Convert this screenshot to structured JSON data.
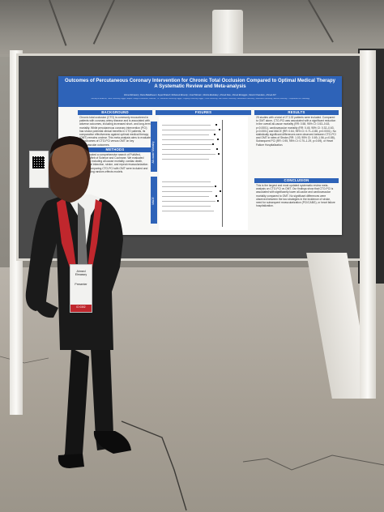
{
  "poster": {
    "title": "Outcomes of Percutaneous Coronary Intervention for Chronic Total Occlusion Compared to Optimal Medical Therapy",
    "subtitle": "A Systematic Review and Meta-analysis",
    "authors": "Ahmed Elmassry¹, Reina Balakhseen², Zeyad Khaled³, Mohamed Elmerdy⁴, Imad Tahmaz⁵, Moniza Elsokkary⁶, Ahmed Daw⁷, Ahmed Elmaggar⁸, Mounir Chaoulam⁹, Ahmed Ali¹⁰",
    "affiliations": "¹Faculty of Medicine, Tanta University, Egypt; ²Baylor College of Medicine, Houston, TX; ³Menoufia University, Egypt; ⁴Zagazig University, Egypt; ⁵Cairo University; ⁶Ain Shams University; ⁷Alexandria University; ⁸Mansoura University; ⁹Assiut University; ¹⁰Department of Cardiology",
    "sections": {
      "background": "BACKGROUND",
      "methods": "METHODS",
      "figures": "FIGURES",
      "results": "RESULTS",
      "conclusion": "CONCLUSION"
    },
    "background_text": "Chronic total occlusion (CTO) is commonly encountered in patients with coronary artery disease and is associated with adverse outcomes, including increased short- and long-term mortality. While percutaneous coronary intervention (PCI) has shown potential clinical benefits in CTO patients, its comparative effectiveness against optimal medical therapy (OMT) remains unclear. This meta-analysis aims to evaluate the outcomes of CTO-PCI versus OMT on key cardiovascular outcomes.",
    "methods_text": "We conducted a comprehensive search of PubMed, Scopus, Web of Science and Cochrane. We evaluated outcomes including all-cause mortality, cardiac death, myocardial infarction, stroke, and repeat revascularization. Studies comparing CTO-PCI with OMT were included and pooled using random-effects models.",
    "side_tabs": [
      "All-cause Mortality",
      "MACE"
    ],
    "results_text": "25 studies with a total of 27,132 patients were included. Compared to OMT alone, CTO-PCI was associated with a significant reduction in the overall all-cause mortality (RR: 0.58, 95% CI: 0.53–0.63, p<0.0001), cardiovascular mortality (RR: 0.45, 95% CI: 0.32–0.63, p<0.0001) and MACE (RR: 0.64, 95% CI: 0.71–0.88, p<0.0001). No statistically significant differences were observed between CTO-PCI and OMT in rates of Stroke (RR: 1.03, 95% CI: 0.69–1.56, p=0.88), Subsequent PCI (RR: 0.95, 95% CI: 0.70–1.29, p=0.59), or Heart Failure Hospitalization.",
    "conclusion_text": "This is the largest and most updated systematic review meta-analysis on CTO-PCI vs OMT. Our findings show that CTO-PCI is associated with significantly lower all-cause and cardiovascular mortality compared to OMT. No significant differences were observed between the two strategies in the incidence of stroke, need for subsequent revascularization (PCI/CABG), or heart failure hospitalization."
  },
  "badge": {
    "name": "Ahmed Elmassry",
    "role": "Presenter",
    "id": "ID 0302"
  },
  "colors": {
    "poster_blue": "#2e63b8",
    "board_gray": "#4a4a4a",
    "lanyard_red": "#c0272d"
  }
}
